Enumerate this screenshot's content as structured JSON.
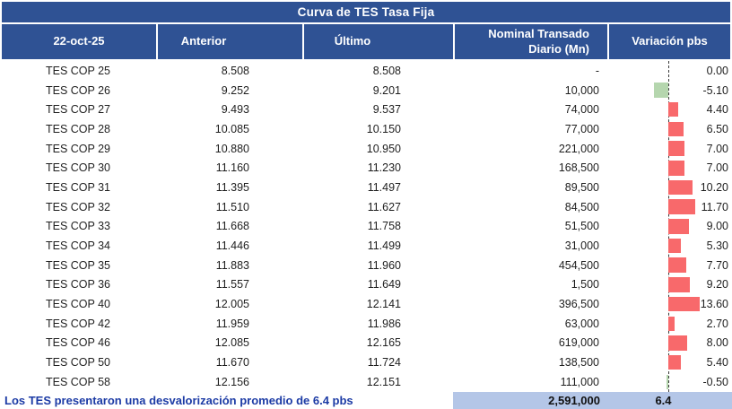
{
  "title": "Curva de TES Tasa Fija",
  "header": {
    "date": "22-oct-25",
    "col_anterior": "Anterior",
    "col_ultimo": "Último",
    "col_nominal": "Nominal Transado Diario (Mn)",
    "col_variacion": "Variación pbs"
  },
  "footer": {
    "note": "Los TES presentaron una desvalorización promedio de 6.4 pbs",
    "total_nominal": "2,591,000",
    "avg_variacion": "6.4"
  },
  "colors": {
    "header_bg": "#2F5294",
    "note_text": "#1C3BA5",
    "highlight": "#B4C6E7",
    "bar_up_red": "#F8696B",
    "bar_down_green": "#B5D6AE"
  },
  "chart_data": {
    "type": "table",
    "title": "Curva de TES Tasa Fija",
    "date": "22-oct-25",
    "columns": [
      "22-oct-25",
      "Anterior",
      "Último",
      "Nominal Transado Diario (Mn)",
      "Variación pbs"
    ],
    "rows": [
      {
        "bond": "TES COP 25",
        "anterior": "8.508",
        "ultimo": "8.508",
        "nominal": "-",
        "variacion": 0.0
      },
      {
        "bond": "TES COP 26",
        "anterior": "9.252",
        "ultimo": "9.201",
        "nominal": "10,000",
        "variacion": -5.1
      },
      {
        "bond": "TES COP 27",
        "anterior": "9.493",
        "ultimo": "9.537",
        "nominal": "74,000",
        "variacion": 4.4
      },
      {
        "bond": "TES COP 28",
        "anterior": "10.085",
        "ultimo": "10.150",
        "nominal": "77,000",
        "variacion": 6.5
      },
      {
        "bond": "TES COP 29",
        "anterior": "10.880",
        "ultimo": "10.950",
        "nominal": "221,000",
        "variacion": 7.0
      },
      {
        "bond": "TES COP 30",
        "anterior": "11.160",
        "ultimo": "11.230",
        "nominal": "168,500",
        "variacion": 7.0
      },
      {
        "bond": "TES COP 31",
        "anterior": "11.395",
        "ultimo": "11.497",
        "nominal": "89,500",
        "variacion": 10.2
      },
      {
        "bond": "TES COP 32",
        "anterior": "11.510",
        "ultimo": "11.627",
        "nominal": "84,500",
        "variacion": 11.7
      },
      {
        "bond": "TES COP 33",
        "anterior": "11.668",
        "ultimo": "11.758",
        "nominal": "51,500",
        "variacion": 9.0
      },
      {
        "bond": "TES COP 34",
        "anterior": "11.446",
        "ultimo": "11.499",
        "nominal": "31,000",
        "variacion": 5.3
      },
      {
        "bond": "TES COP 35",
        "anterior": "11.883",
        "ultimo": "11.960",
        "nominal": "454,500",
        "variacion": 7.7
      },
      {
        "bond": "TES COP 36",
        "anterior": "11.557",
        "ultimo": "11.649",
        "nominal": "1,500",
        "variacion": 9.2
      },
      {
        "bond": "TES COP 40",
        "anterior": "12.005",
        "ultimo": "12.141",
        "nominal": "396,500",
        "variacion": 13.6
      },
      {
        "bond": "TES COP 42",
        "anterior": "11.959",
        "ultimo": "11.986",
        "nominal": "63,000",
        "variacion": 2.7
      },
      {
        "bond": "TES COP 46",
        "anterior": "12.085",
        "ultimo": "12.165",
        "nominal": "619,000",
        "variacion": 8.0
      },
      {
        "bond": "TES COP 50",
        "anterior": "11.670",
        "ultimo": "11.724",
        "nominal": "138,500",
        "variacion": 5.4
      },
      {
        "bond": "TES COP 58",
        "anterior": "12.156",
        "ultimo": "12.151",
        "nominal": "111,000",
        "variacion": -0.5
      }
    ],
    "embedded_bars": {
      "type": "bar",
      "series": "Variación pbs",
      "orientation": "horizontal-in-cell",
      "zero_axis": "dashed-vertical-line",
      "positive_color": "#F8696B",
      "negative_color": "#B5D6AE",
      "value_range": [
        -5.1,
        13.6
      ]
    },
    "totals": {
      "nominal_total": "2,591,000",
      "variacion_promedio": "6.4"
    },
    "summary_note": "Los TES presentaron una desvalorización promedio de 6.4 pbs"
  }
}
